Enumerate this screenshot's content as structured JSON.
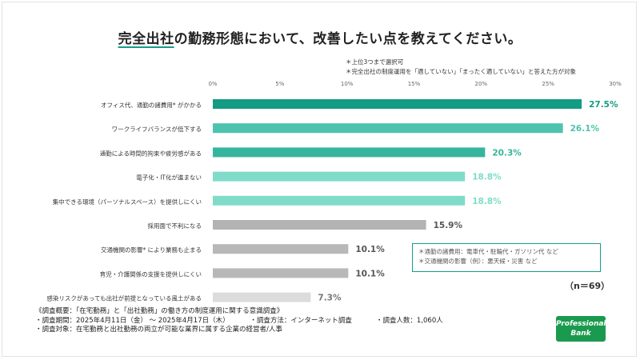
{
  "title": {
    "highlight": "完全出社",
    "rest": "の勤務形態において、改善したい点を教えてください。"
  },
  "notes": [
    "＊上位3つまで選択可",
    "＊完全出社の制度運用を「適していない」「まったく適していない」と答えた方が対象"
  ],
  "chart_data": {
    "type": "bar",
    "orientation": "horizontal",
    "unit": "%",
    "xlim": [
      0,
      30
    ],
    "ticks": [
      "0%",
      "5%",
      "10%",
      "15%",
      "20%",
      "25%",
      "30%"
    ],
    "tick_values": [
      0,
      5,
      10,
      15,
      20,
      25,
      30
    ],
    "categories": [
      "オフィス代、通勤の諸費用* がかかる",
      "ワークライフバランスが低下する",
      "通勤による時間的拘束や疲労感がある",
      "電子化・IT化が進まない",
      "集中できる環境（パーソナルスペース）を提供しにくい",
      "採用面で不利になる",
      "交通機関の影響* により業務も止まる",
      "育児・介護関係の支援を提供しにくい",
      "感染リスクがあっても出社が前提となっている風土がある"
    ],
    "values": [
      27.5,
      26.1,
      20.3,
      18.8,
      18.8,
      15.9,
      10.1,
      10.1,
      7.3
    ],
    "value_labels": [
      "27.5%",
      "26.1%",
      "20.3%",
      "18.8%",
      "18.8%",
      "15.9%",
      "10.1%",
      "10.1%",
      "7.3%"
    ],
    "bar_colors": [
      "#139b83",
      "#4cc3ad",
      "#35b59d",
      "#7fdcc9",
      "#7fdcc9",
      "#b3b3b3",
      "#b8b8b8",
      "#b8b8b8",
      "#dcdcdc"
    ],
    "label_colors": [
      "#139b83",
      "#4cc3ad",
      "#35b59d",
      "#7fdcc9",
      "#7fdcc9",
      "#555555",
      "#555555",
      "#555555",
      "#777777"
    ]
  },
  "legend_box": [
    "＊通勤の諸費用：電車代・駐輪代・ガソリン代 など",
    "＊交通機関の影響（例）：悪天候・災害 など"
  ],
  "n_label": "（n＝69）",
  "survey": {
    "line1": "《調査概要：「在宅勤務」と「出社勤務」の働き方の制度運用に関する意識調査》",
    "period": "・調査期間：2025年4月11日（金）  〜 2025年4月17日（木）",
    "method": "・調査方法：インターネット調査",
    "count": "・調査人数：1,060人",
    "target": "・調査対象：在宅勤務と出社勤務の両立が可能な業界に属する企業の経営者/人事"
  },
  "logo": {
    "line1": "Professional",
    "line2": "Bank"
  }
}
